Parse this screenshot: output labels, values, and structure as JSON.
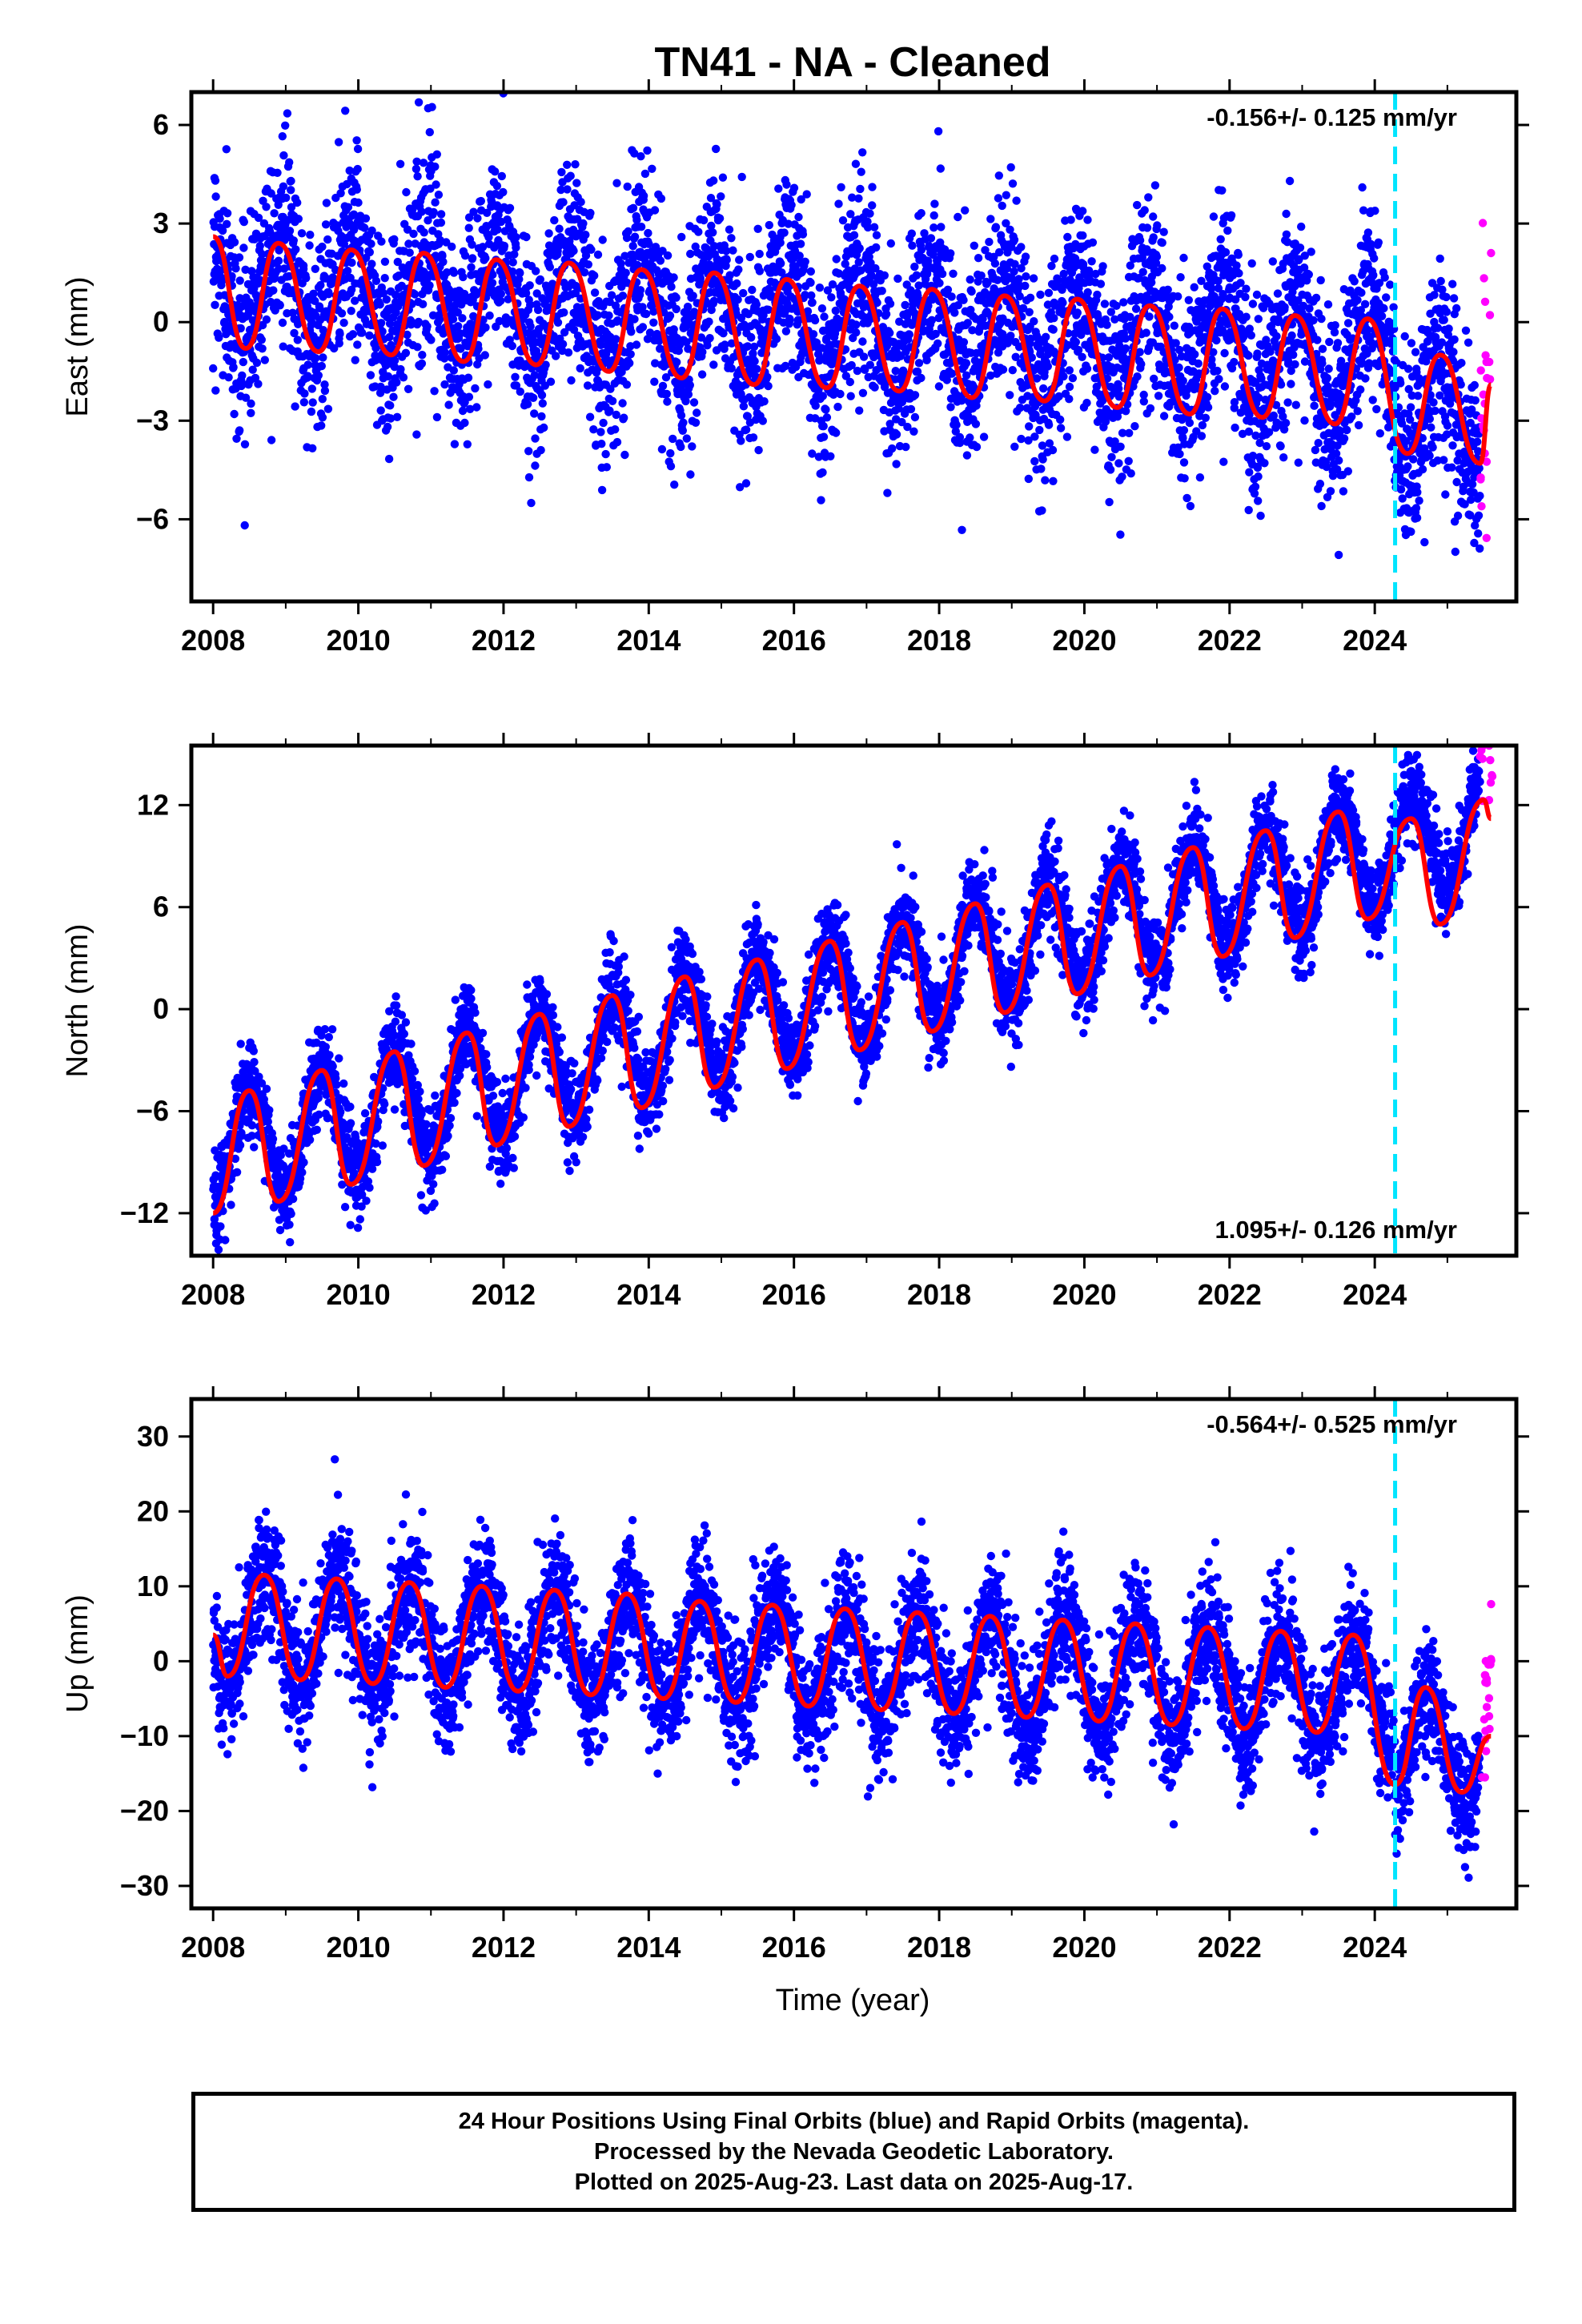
{
  "title": "TN41  - NA - Cleaned",
  "xlabel": "Time (year)",
  "colors": {
    "final_orbits": "#0000ff",
    "rapid_orbits": "#ff00ff",
    "model_fit": "#ff0000",
    "marker_line": "#00e5ff",
    "axis": "#000000"
  },
  "footer": {
    "line1": "24 Hour Positions Using Final Orbits (blue) and Rapid Orbits (magenta).",
    "line2": "Processed by the Nevada Geodetic Laboratory.",
    "line3": "Plotted on 2025-Aug-23. Last data on 2025-Aug-17."
  },
  "chart_data": [
    {
      "type": "scatter",
      "ylabel": "East (mm)",
      "xlim": [
        2007.7,
        2025.95
      ],
      "ylim": [
        -8.5,
        7.0
      ],
      "xticks": [
        2008,
        2010,
        2012,
        2014,
        2016,
        2018,
        2020,
        2022,
        2024
      ],
      "yticks": [
        6,
        3,
        0,
        -3,
        -6
      ],
      "annotation": "-0.156+/- 0.125 mm/yr",
      "annotation_position": "top-right",
      "vertical_marker_x": 2024.28,
      "rapid_start_x": 2025.45,
      "model": {
        "slope": -0.156,
        "offset_2008": 1.3,
        "annual_amp": 1.6,
        "annual_phase_peak": 0.9,
        "step": {
          "x": 2024.28,
          "size": -1.5
        }
      },
      "scatter_noise": 1.45,
      "series": [
        {
          "name": "Final Orbits",
          "color": "#0000ff",
          "x_range": [
            2008.0,
            2025.45
          ]
        },
        {
          "name": "Rapid Orbits",
          "color": "#ff00ff",
          "x_range": [
            2025.45,
            2025.62
          ]
        }
      ],
      "fit_samples": {
        "x": [
          2008.0,
          2008.45,
          2008.9,
          2009.45,
          2009.9,
          2010.45,
          2010.9,
          2011.45,
          2011.9,
          2012.45,
          2012.9,
          2013.45,
          2013.9,
          2014.45,
          2014.9,
          2015.45,
          2015.9,
          2016.45,
          2016.9,
          2017.45,
          2017.9,
          2018.45,
          2018.9,
          2019.45,
          2019.9,
          2020.45,
          2020.9,
          2021.45,
          2021.9,
          2022.45,
          2022.9,
          2023.45,
          2023.9,
          2024.45,
          2024.9,
          2025.45,
          2025.6
        ],
        "y": [
          2.6,
          -0.8,
          2.4,
          -0.9,
          2.2,
          -1.0,
          2.1,
          -1.2,
          1.9,
          -1.3,
          1.8,
          -1.5,
          1.6,
          -1.7,
          1.5,
          -1.9,
          1.3,
          -2.0,
          1.1,
          -2.1,
          1.0,
          -2.3,
          0.8,
          -2.4,
          0.7,
          -2.6,
          0.5,
          -2.8,
          0.4,
          -2.9,
          0.2,
          -3.1,
          0.1,
          -4.0,
          -1.0,
          -4.3,
          -1.9
        ]
      }
    },
    {
      "type": "scatter",
      "ylabel": "North (mm)",
      "xlim": [
        2007.7,
        2025.95
      ],
      "ylim": [
        -14.5,
        15.5
      ],
      "xticks": [
        2008,
        2010,
        2012,
        2014,
        2016,
        2018,
        2020,
        2022,
        2024
      ],
      "yticks": [
        12,
        6,
        0,
        -6,
        -12
      ],
      "annotation": "1.095+/- 0.126 mm/yr",
      "annotation_position": "bottom-right",
      "vertical_marker_x": 2024.28,
      "rapid_start_x": 2025.45,
      "model": {
        "slope": 1.095,
        "offset_2008": -8.4,
        "annual_amp": 3.3,
        "annual_phase_peak": 0.5,
        "step": {
          "x": 2024.28,
          "size": 0.0
        }
      },
      "scatter_noise": 1.3,
      "series": [
        {
          "name": "Final Orbits",
          "color": "#0000ff",
          "x_range": [
            2008.0,
            2025.45
          ]
        },
        {
          "name": "Rapid Orbits",
          "color": "#ff00ff",
          "x_range": [
            2025.45,
            2025.62
          ]
        }
      ],
      "fit_samples": {
        "x": [
          2008.0,
          2008.5,
          2008.9,
          2009.5,
          2009.9,
          2010.5,
          2010.9,
          2011.5,
          2011.9,
          2012.5,
          2012.9,
          2013.5,
          2013.9,
          2014.5,
          2014.9,
          2015.5,
          2015.9,
          2016.5,
          2016.9,
          2017.5,
          2017.9,
          2018.5,
          2018.9,
          2019.5,
          2019.9,
          2020.5,
          2020.9,
          2021.5,
          2021.9,
          2022.5,
          2022.9,
          2023.5,
          2023.9,
          2024.5,
          2024.9,
          2025.5,
          2025.6
        ],
        "y": [
          -12.0,
          -4.8,
          -11.3,
          -3.6,
          -10.3,
          -2.5,
          -9.2,
          -1.4,
          -8.0,
          -0.3,
          -6.9,
          0.8,
          -5.8,
          1.9,
          -4.6,
          2.9,
          -3.5,
          4.0,
          -2.4,
          5.1,
          -1.3,
          6.2,
          -0.2,
          7.3,
          0.9,
          8.4,
          2.0,
          9.5,
          3.1,
          10.5,
          4.2,
          11.6,
          5.3,
          11.2,
          5.0,
          12.3,
          11.2
        ]
      }
    },
    {
      "type": "scatter",
      "ylabel": "Up (mm)",
      "xlim": [
        2007.7,
        2025.95
      ],
      "ylim": [
        -33,
        35
      ],
      "xticks": [
        2008,
        2010,
        2012,
        2014,
        2016,
        2018,
        2020,
        2022,
        2024
      ],
      "yticks": [
        30,
        20,
        10,
        0,
        -10,
        -20,
        -30
      ],
      "annotation": "-0.564+/- 0.525 mm/yr",
      "annotation_position": "top-right",
      "vertical_marker_x": 2024.28,
      "rapid_start_x": 2025.45,
      "model": {
        "slope": -0.564,
        "offset_2008": 4.8,
        "annual_amp": 7.2,
        "annual_phase_peak": 0.72,
        "step": {
          "x": 2024.28,
          "size": -7.0
        }
      },
      "scatter_noise": 4.2,
      "series": [
        {
          "name": "Final Orbits",
          "color": "#0000ff",
          "x_range": [
            2008.0,
            2025.45
          ]
        },
        {
          "name": "Rapid Orbits",
          "color": "#ff00ff",
          "x_range": [
            2025.45,
            2025.62
          ]
        }
      ],
      "fit_samples": {
        "x": [
          2008.0,
          2008.2,
          2008.7,
          2009.2,
          2009.7,
          2010.2,
          2010.7,
          2011.2,
          2011.7,
          2012.2,
          2012.7,
          2013.2,
          2013.7,
          2014.2,
          2014.7,
          2015.2,
          2015.7,
          2016.2,
          2016.7,
          2017.2,
          2017.7,
          2018.2,
          2018.7,
          2019.2,
          2019.7,
          2020.2,
          2020.7,
          2021.2,
          2021.7,
          2022.2,
          2022.7,
          2023.2,
          2023.7,
          2024.28,
          2024.7,
          2025.2,
          2025.6
        ],
        "y": [
          3.5,
          -2.0,
          11.5,
          -2.5,
          11.0,
          -3.0,
          10.5,
          -3.5,
          10.0,
          -4.0,
          9.5,
          -4.5,
          9.0,
          -5.0,
          8.0,
          -5.5,
          7.5,
          -6.0,
          7.0,
          -6.5,
          6.5,
          -7.0,
          6.0,
          -7.5,
          5.5,
          -8.0,
          5.0,
          -8.5,
          4.5,
          -9.0,
          4.0,
          -9.5,
          3.5,
          -16.5,
          -3.5,
          -17.5,
          -10.0
        ]
      }
    }
  ]
}
